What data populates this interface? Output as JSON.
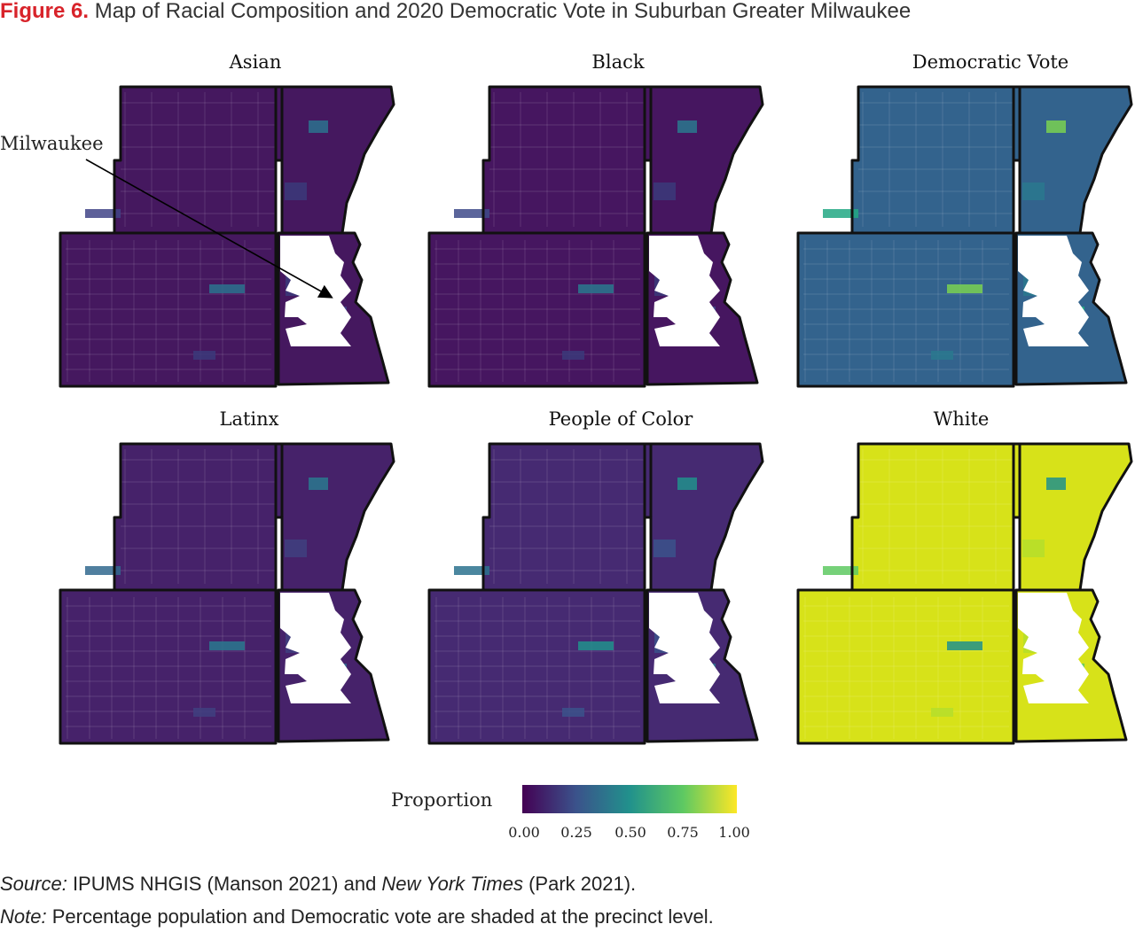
{
  "figure": {
    "label": "Figure 6.",
    "title": "Map of Racial Composition and 2020 Democratic Vote in Suburban Greater Milwaukee"
  },
  "panels": [
    {
      "id": "asian",
      "title": "Asian",
      "county_fill": "#45185f",
      "shades": [
        "#3b3a7a",
        "#414487",
        "#2c728e"
      ]
    },
    {
      "id": "black",
      "title": "Black",
      "county_fill": "#461660",
      "shades": [
        "#3b3a7a",
        "#3e4a89",
        "#2a788e"
      ]
    },
    {
      "id": "democratic-vote",
      "title": "Democratic Vote",
      "county_fill": "#33638d",
      "shades": [
        "#2a788e",
        "#22a884",
        "#7ad151"
      ]
    },
    {
      "id": "latinx",
      "title": "Latinx",
      "county_fill": "#46226a",
      "shades": [
        "#3f3f7f",
        "#31688e",
        "#2a788e"
      ]
    },
    {
      "id": "people-of-color",
      "title": "People of Color",
      "county_fill": "#462a72",
      "shades": [
        "#3b528b",
        "#2c728e",
        "#21918c"
      ]
    },
    {
      "id": "white",
      "title": "White",
      "county_fill": "#d7e219",
      "shades": [
        "#b5de2b",
        "#5ec962",
        "#21918c"
      ]
    }
  ],
  "annotation": {
    "label": "Milwaukee"
  },
  "legend": {
    "title": "Proportion",
    "ticks": [
      "0.00",
      "0.25",
      "0.50",
      "0.75",
      "1.00"
    ],
    "tick_values": [
      0,
      0.25,
      0.5,
      0.75,
      1.0
    ],
    "colors": [
      "#440154",
      "#3b528b",
      "#21918c",
      "#5ec962",
      "#fde725"
    ]
  },
  "footer": {
    "source_label": "Source:",
    "source_text_1": " IPUMS NHGIS (Manson 2021) and ",
    "source_italic": "New York Times",
    "source_text_2": " (Park 2021).",
    "note_label": "Note:",
    "note_text": " Percentage population and Democratic vote are shaded at the precinct level."
  }
}
